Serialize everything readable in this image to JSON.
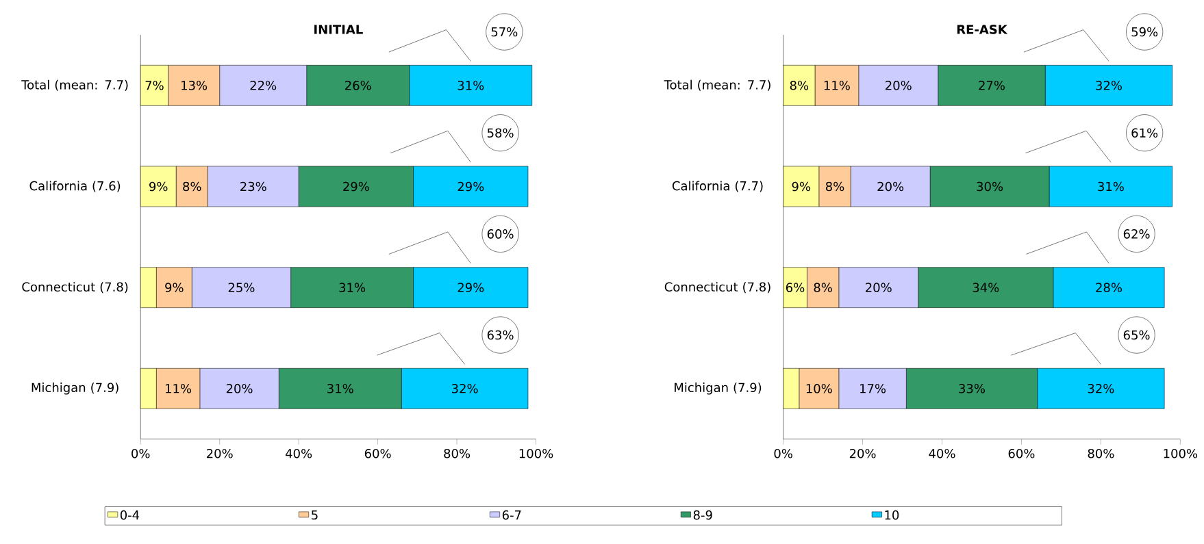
{
  "chart_data": [
    {
      "type": "bar",
      "orientation": "horizontal",
      "stacked": true,
      "title": "INITIAL",
      "categories": [
        "Total (mean: 7.7)",
        "California (7.6)",
        "Connecticut (7.8)",
        "Michigan (7.9)"
      ],
      "series": [
        {
          "name": "0-4",
          "color": "#ffff99",
          "values": [
            7,
            9,
            4,
            4
          ],
          "value_labels": [
            "7%",
            "9%",
            null,
            null
          ]
        },
        {
          "name": "5",
          "color": "#ffcc99",
          "values": [
            13,
            8,
            9,
            11
          ],
          "value_labels": [
            "13%",
            "8%",
            "9%",
            "11%"
          ]
        },
        {
          "name": "6-7",
          "color": "#ccccff",
          "values": [
            22,
            23,
            25,
            20
          ],
          "value_labels": [
            "22%",
            "23%",
            "25%",
            "20%"
          ]
        },
        {
          "name": "8-9",
          "color": "#339966",
          "values": [
            26,
            29,
            31,
            31
          ],
          "value_labels": [
            "26%",
            "29%",
            "31%",
            "31%"
          ]
        },
        {
          "name": "10",
          "color": "#00ccff",
          "values": [
            31,
            29,
            29,
            32
          ],
          "value_labels": [
            "31%",
            "29%",
            "29%",
            "32%"
          ]
        }
      ],
      "xlim": [
        0,
        100
      ],
      "xticks": [
        {
          "value": 0,
          "label": "0%"
        },
        {
          "value": 20,
          "label": "20%"
        },
        {
          "value": 40,
          "label": "40%"
        },
        {
          "value": 60,
          "label": "60%"
        },
        {
          "value": 80,
          "label": "80%"
        },
        {
          "value": 100,
          "label": "100%"
        }
      ],
      "annotations": [
        "57%",
        "58%",
        "60%",
        "63%"
      ],
      "legend": "bottom"
    },
    {
      "type": "bar",
      "orientation": "horizontal",
      "stacked": true,
      "title": "RE-ASK",
      "categories": [
        "Total (mean: 7.7)",
        "California (7.7)",
        "Connecticut (7.8)",
        "Michigan (7.9)"
      ],
      "series": [
        {
          "color": "#ffff99",
          "values": [
            8,
            9,
            6,
            4
          ],
          "value_labels": [
            "8%",
            "9%",
            "6%",
            null
          ]
        },
        {
          "color": "#ffcc99",
          "values": [
            11,
            8,
            8,
            10
          ],
          "value_labels": [
            "11%",
            "8%",
            "8%",
            "10%"
          ]
        },
        {
          "color": "#ccccff",
          "values": [
            20,
            20,
            20,
            17
          ],
          "value_labels": [
            "20%",
            "20%",
            "20%",
            "17%"
          ]
        },
        {
          "color": "#339966",
          "values": [
            27,
            30,
            34,
            33
          ],
          "value_labels": [
            "27%",
            "30%",
            "34%",
            "33%"
          ]
        },
        {
          "color": "#00ccff",
          "values": [
            32,
            31,
            28,
            32
          ],
          "value_labels": [
            "32%",
            "31%",
            "28%",
            "32%"
          ]
        }
      ],
      "xlim": [
        0,
        100
      ],
      "xticks": [
        {
          "value": 0,
          "label": "0%"
        },
        {
          "value": 20,
          "label": "20%"
        },
        {
          "value": 40,
          "label": "40%"
        },
        {
          "value": 60,
          "label": "60%"
        },
        {
          "value": 80,
          "label": "80%"
        },
        {
          "value": 100,
          "label": "100%"
        }
      ],
      "annotations": [
        "59%",
        "61%",
        "62%",
        "65%"
      ]
    }
  ]
}
